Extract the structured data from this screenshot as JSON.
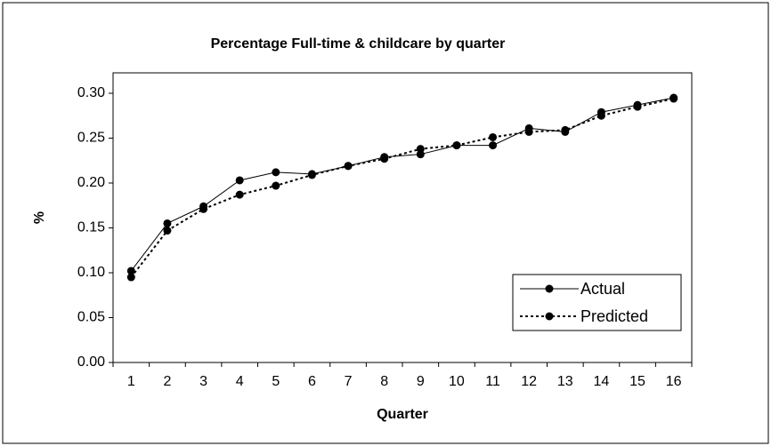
{
  "chart_data": {
    "type": "line",
    "title": "Percentage Full-time & childcare by quarter",
    "x_label": "Quarter",
    "y_label": "%",
    "categories": [
      "1",
      "2",
      "3",
      "4",
      "5",
      "6",
      "7",
      "8",
      "9",
      "10",
      "11",
      "12",
      "13",
      "14",
      "15",
      "16"
    ],
    "series": [
      {
        "name": "Actual",
        "color": "#000000",
        "line_style": "solid",
        "values": [
          0.102,
          0.155,
          0.174,
          0.203,
          0.212,
          0.21,
          0.219,
          0.229,
          0.232,
          0.242,
          0.242,
          0.261,
          0.257,
          0.279,
          0.287,
          0.295
        ]
      },
      {
        "name": "Predicted",
        "color": "#000000",
        "line_style": "dotted",
        "values": [
          0.095,
          0.147,
          0.171,
          0.187,
          0.197,
          0.209,
          0.219,
          0.227,
          0.238,
          0.242,
          0.251,
          0.257,
          0.259,
          0.275,
          0.285,
          0.294
        ]
      }
    ],
    "ylim": [
      0,
      0.3
    ],
    "yticks": [
      {
        "value": 0,
        "label": "0.00"
      },
      {
        "value": 0.05,
        "label": "0.05"
      },
      {
        "value": 0.1,
        "label": "0.10"
      },
      {
        "value": 0.15,
        "label": "0.15"
      },
      {
        "value": 0.2,
        "label": "0.20"
      },
      {
        "value": 0.25,
        "label": "0.25"
      },
      {
        "value": 0.3,
        "label": "0.30"
      }
    ],
    "grid": false,
    "legend": "lower right"
  }
}
